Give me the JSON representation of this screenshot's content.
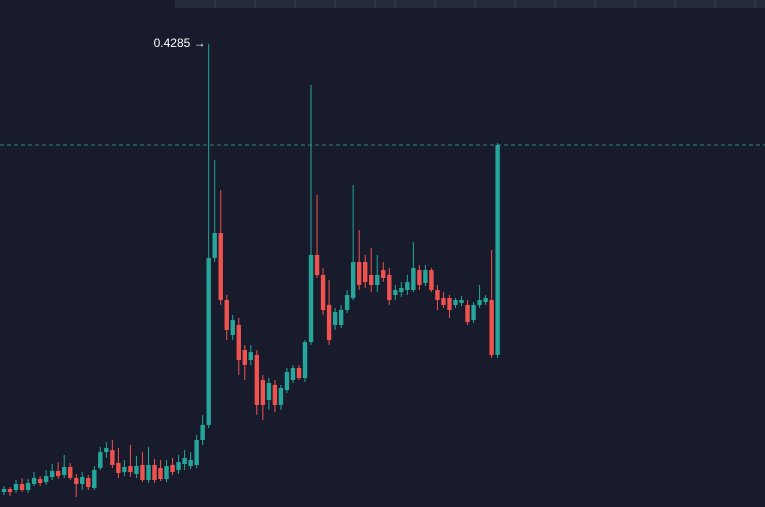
{
  "chart_data": {
    "type": "candlestick",
    "high_label": "0.4285 →",
    "up_color": "#26a69a",
    "down_color": "#ef5350",
    "last_price_line": true,
    "ylim": [
      0.044,
      0.4648
    ],
    "open": [
      0.0564,
      0.0589,
      0.0581,
      0.0631,
      0.0581,
      0.0631,
      0.0672,
      0.0647,
      0.0689,
      0.0739,
      0.0706,
      0.0772,
      0.0681,
      0.0631,
      0.0681,
      0.0598,
      0.0764,
      0.0896,
      0.0913,
      0.0805,
      0.073,
      0.078,
      0.0714,
      0.0789,
      0.0664,
      0.0789,
      0.0764,
      0.0672,
      0.0789,
      0.0747,
      0.0797,
      0.078,
      0.0789,
      0.0996,
      0.1121,
      0.2507,
      0.2714,
      0.2158,
      0.1868,
      0.1951,
      0.1743,
      0.166,
      0.1702,
      0.1494,
      0.1328,
      0.1453,
      0.1287,
      0.1411,
      0.1494,
      0.1594,
      0.1511,
      0.1809,
      0.2532,
      0.2366,
      0.2117,
      0.1951,
      0.1951,
      0.2075,
      0.2175,
      0.2473,
      0.2473,
      0.2366,
      0.2283,
      0.2407,
      0.2366,
      0.22,
      0.2224,
      0.2241,
      0.2241,
      0.2407,
      0.2299,
      0.2407,
      0.2241,
      0.2175,
      0.2175,
      0.2117,
      0.2133,
      0.2117,
      0.1992,
      0.2117,
      0.2141,
      0.2158,
      0.1702
    ],
    "high": [
      0.0614,
      0.0606,
      0.0664,
      0.0681,
      0.0672,
      0.073,
      0.0697,
      0.0747,
      0.0797,
      0.0813,
      0.0872,
      0.0805,
      0.0714,
      0.073,
      0.0706,
      0.078,
      0.0938,
      0.0979,
      0.0996,
      0.093,
      0.083,
      0.0955,
      0.0863,
      0.0896,
      0.0938,
      0.0838,
      0.083,
      0.083,
      0.0847,
      0.0872,
      0.0913,
      0.0896,
      0.1038,
      0.1204,
      0.4285,
      0.332,
      0.3071,
      0.22,
      0.2034,
      0.2009,
      0.1785,
      0.1785,
      0.1743,
      0.1536,
      0.1511,
      0.1494,
      0.1453,
      0.1594,
      0.1619,
      0.1619,
      0.1826,
      0.3943,
      0.303,
      0.2424,
      0.2324,
      0.2092,
      0.2117,
      0.2241,
      0.3113,
      0.2739,
      0.2532,
      0.259,
      0.2532,
      0.2473,
      0.2424,
      0.2283,
      0.2307,
      0.2366,
      0.2639,
      0.2449,
      0.2449,
      0.2424,
      0.2283,
      0.2224,
      0.22,
      0.2175,
      0.2191,
      0.2158,
      0.2141,
      0.2283,
      0.22,
      0.2573,
      0.3461
    ],
    "low": [
      0.054,
      0.0531,
      0.0556,
      0.0564,
      0.0556,
      0.0614,
      0.0614,
      0.0623,
      0.0664,
      0.0672,
      0.0681,
      0.0664,
      0.0523,
      0.0581,
      0.0581,
      0.0581,
      0.0747,
      0.0847,
      0.0764,
      0.0681,
      0.0697,
      0.0689,
      0.0681,
      0.0647,
      0.0639,
      0.0639,
      0.0656,
      0.0647,
      0.0706,
      0.0714,
      0.0747,
      0.0755,
      0.0764,
      0.0955,
      0.1096,
      0.2473,
      0.2117,
      0.1826,
      0.1826,
      0.1536,
      0.1494,
      0.1619,
      0.1204,
      0.1162,
      0.1245,
      0.1228,
      0.1245,
      0.1386,
      0.1469,
      0.1494,
      0.1477,
      0.1785,
      0.2341,
      0.2034,
      0.1785,
      0.1909,
      0.1926,
      0.205,
      0.2158,
      0.2241,
      0.2258,
      0.2224,
      0.2224,
      0.2307,
      0.2117,
      0.2158,
      0.2183,
      0.22,
      0.2224,
      0.2241,
      0.2274,
      0.2224,
      0.2075,
      0.2092,
      0.2009,
      0.2092,
      0.2108,
      0.1951,
      0.1967,
      0.2092,
      0.2117,
      0.1677,
      0.1677
    ],
    "close": [
      0.0589,
      0.0564,
      0.0631,
      0.0581,
      0.0639,
      0.0681,
      0.0639,
      0.0697,
      0.0739,
      0.0697,
      0.0772,
      0.0681,
      0.0631,
      0.0689,
      0.0606,
      0.0747,
      0.0896,
      0.093,
      0.0789,
      0.0722,
      0.0772,
      0.073,
      0.078,
      0.0664,
      0.0789,
      0.0664,
      0.0672,
      0.078,
      0.073,
      0.0813,
      0.0847,
      0.083,
      0.0996,
      0.1121,
      0.2507,
      0.2714,
      0.2158,
      0.1909,
      0.1992,
      0.166,
      0.1619,
      0.1726,
      0.1287,
      0.1287,
      0.1469,
      0.1287,
      0.1428,
      0.156,
      0.1594,
      0.1511,
      0.1809,
      0.2532,
      0.2366,
      0.2075,
      0.1826,
      0.2058,
      0.2075,
      0.22,
      0.2473,
      0.2283,
      0.2307,
      0.2283,
      0.2366,
      0.2341,
      0.2158,
      0.2241,
      0.2258,
      0.2307,
      0.2424,
      0.2283,
      0.2407,
      0.2241,
      0.2158,
      0.2117,
      0.2075,
      0.2158,
      0.2158,
      0.1975,
      0.2117,
      0.2158,
      0.2175,
      0.1702,
      0.3445
    ]
  }
}
